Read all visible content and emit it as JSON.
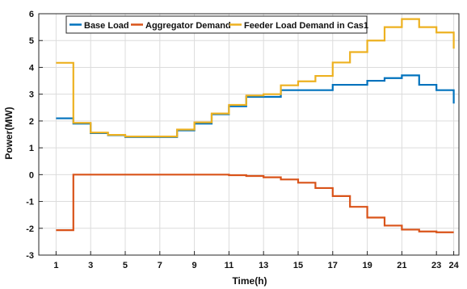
{
  "chart_data": {
    "type": "line",
    "step": true,
    "xlabel": "Time(h)",
    "ylabel": "Power(MW)",
    "xlim": [
      0,
      24.3
    ],
    "ylim": [
      -3,
      6
    ],
    "xticks": [
      1,
      3,
      5,
      7,
      9,
      11,
      13,
      15,
      17,
      19,
      21,
      23,
      24
    ],
    "yticks": [
      -3,
      -2,
      -1,
      0,
      1,
      2,
      3,
      4,
      5,
      6
    ],
    "grid": true,
    "legend_position": "top",
    "series": [
      {
        "name": "Base Load",
        "color": "#0072BD",
        "values": [
          2.1,
          1.9,
          1.55,
          1.47,
          1.4,
          1.4,
          1.4,
          1.65,
          1.9,
          2.25,
          2.55,
          2.9,
          2.9,
          3.15,
          3.15,
          3.15,
          3.35,
          3.35,
          3.5,
          3.6,
          3.7,
          3.35,
          3.15,
          2.65
        ]
      },
      {
        "name": "Aggregator Demand",
        "color": "#D95319",
        "values": [
          -2.07,
          0.0,
          0.0,
          0.0,
          0.0,
          0.0,
          0.0,
          0.0,
          0.0,
          0.0,
          -0.02,
          -0.05,
          -0.1,
          -0.18,
          -0.3,
          -0.5,
          -0.8,
          -1.2,
          -1.6,
          -1.9,
          -2.05,
          -2.12,
          -2.15,
          -2.15
        ]
      },
      {
        "name": "Feeder Load Demand in Cas1",
        "color": "#EDB120",
        "values": [
          4.17,
          1.93,
          1.57,
          1.48,
          1.42,
          1.42,
          1.42,
          1.68,
          1.95,
          2.28,
          2.6,
          2.95,
          3.0,
          3.33,
          3.48,
          3.68,
          4.18,
          4.57,
          5.0,
          5.5,
          5.8,
          5.5,
          5.3,
          4.7
        ]
      }
    ]
  }
}
